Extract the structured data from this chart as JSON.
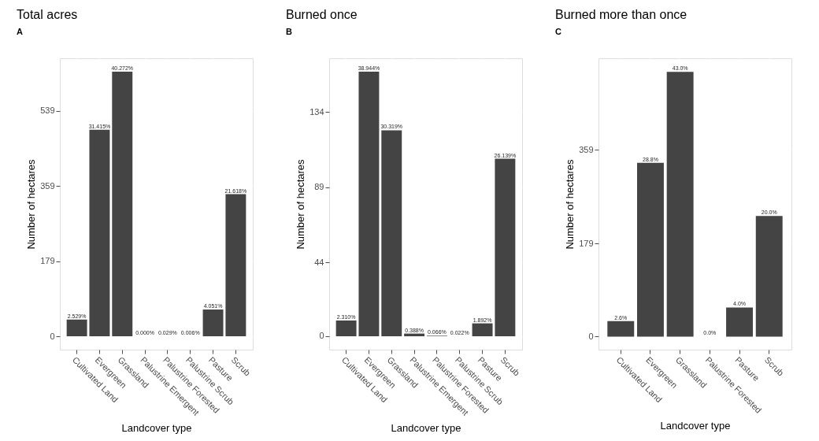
{
  "chart_data": [
    {
      "type": "bar",
      "title": "Total acres",
      "xlabel": "Landcover type",
      "ylabel": "Number of hectares",
      "categories": [
        "Cultivated Land",
        "Evergreen",
        "Grassland",
        "Palustrine Emergent",
        "Palustrine Forested",
        "Palustrine Scrub",
        "Pasture",
        "Scrub"
      ],
      "values": [
        40,
        494,
        633,
        0,
        0,
        0,
        64,
        340
      ],
      "color": "#444444",
      "ylim": [
        -32,
        665
      ],
      "yticks": [
        0,
        179,
        359,
        539
      ],
      "grid": true,
      "annotations": [
        "A",
        {
          "text": "2.529%",
          "x": "Cultivated Land",
          "y": 40
        },
        {
          "text": "31.415%",
          "x": "Evergreen",
          "y": 494
        },
        {
          "text": "40.272%",
          "x": "Grassland",
          "y": 633
        },
        {
          "text": "0.000%",
          "x": "Palustrine Emergent",
          "y": 0
        },
        {
          "text": "0.029%",
          "x": "Palustrine Forested",
          "y": 0
        },
        {
          "text": "0.006%",
          "x": "Palustrine Scrub",
          "y": 0
        },
        {
          "text": "4.051%",
          "x": "Pasture",
          "y": 64
        },
        {
          "text": "21.618%",
          "x": "Scrub",
          "y": 340
        }
      ]
    },
    {
      "type": "bar",
      "title": "Burned once",
      "xlabel": "Landcover type",
      "ylabel": "Number of hectares",
      "categories": [
        "Cultivated Land",
        "Evergreen",
        "Grassland",
        "Palustrine Emergent",
        "Palustrine Forested",
        "Palustrine Scrub",
        "Pasture",
        "Scrub"
      ],
      "values": [
        9.4,
        158,
        123,
        1.6,
        0.3,
        0,
        7.7,
        106
      ],
      "color": "#444444",
      "ylim": [
        -8,
        166
      ],
      "yticks": [
        0,
        44,
        89,
        134
      ],
      "grid": true,
      "annotations": [
        "B",
        {
          "text": "2.310%",
          "x": "Cultivated Land",
          "y": 9.4
        },
        {
          "text": "38.944%",
          "x": "Evergreen",
          "y": 158
        },
        {
          "text": "30.319%",
          "x": "Grassland",
          "y": 123
        },
        {
          "text": "0.388%",
          "x": "Palustrine Emergent",
          "y": 1.6
        },
        {
          "text": "0.066%",
          "x": "Palustrine Forested",
          "y": 0.3
        },
        {
          "text": "0.022%",
          "x": "Palustrine Scrub",
          "y": 0
        },
        {
          "text": "1.892%",
          "x": "Pasture",
          "y": 7.7
        },
        {
          "text": "26.139%",
          "x": "Scrub",
          "y": 106
        }
      ]
    },
    {
      "type": "bar",
      "title": "Burned more than once",
      "xlabel": "Landcover type",
      "ylabel": "Number of hectares",
      "categories": [
        "Cultivated Land",
        "Evergreen",
        "Grassland",
        "Palustrine Forested",
        "Pasture",
        "Scrub"
      ],
      "values": [
        30,
        334,
        509,
        0,
        56,
        232
      ],
      "color": "#444444",
      "ylim": [
        -25,
        535
      ],
      "yticks": [
        0,
        179,
        359
      ],
      "grid": true,
      "annotations": [
        "C",
        {
          "text": "2.6%",
          "x": "Cultivated Land",
          "y": 30
        },
        {
          "text": "28.8%",
          "x": "Evergreen",
          "y": 334
        },
        {
          "text": "43.0%",
          "x": "Grassland",
          "y": 509
        },
        {
          "text": "0.0%",
          "x": "Palustrine Forested",
          "y": 0
        },
        {
          "text": "4.0%",
          "x": "Pasture",
          "y": 56
        },
        {
          "text": "20.0%",
          "x": "Scrub",
          "y": 232
        }
      ]
    }
  ]
}
